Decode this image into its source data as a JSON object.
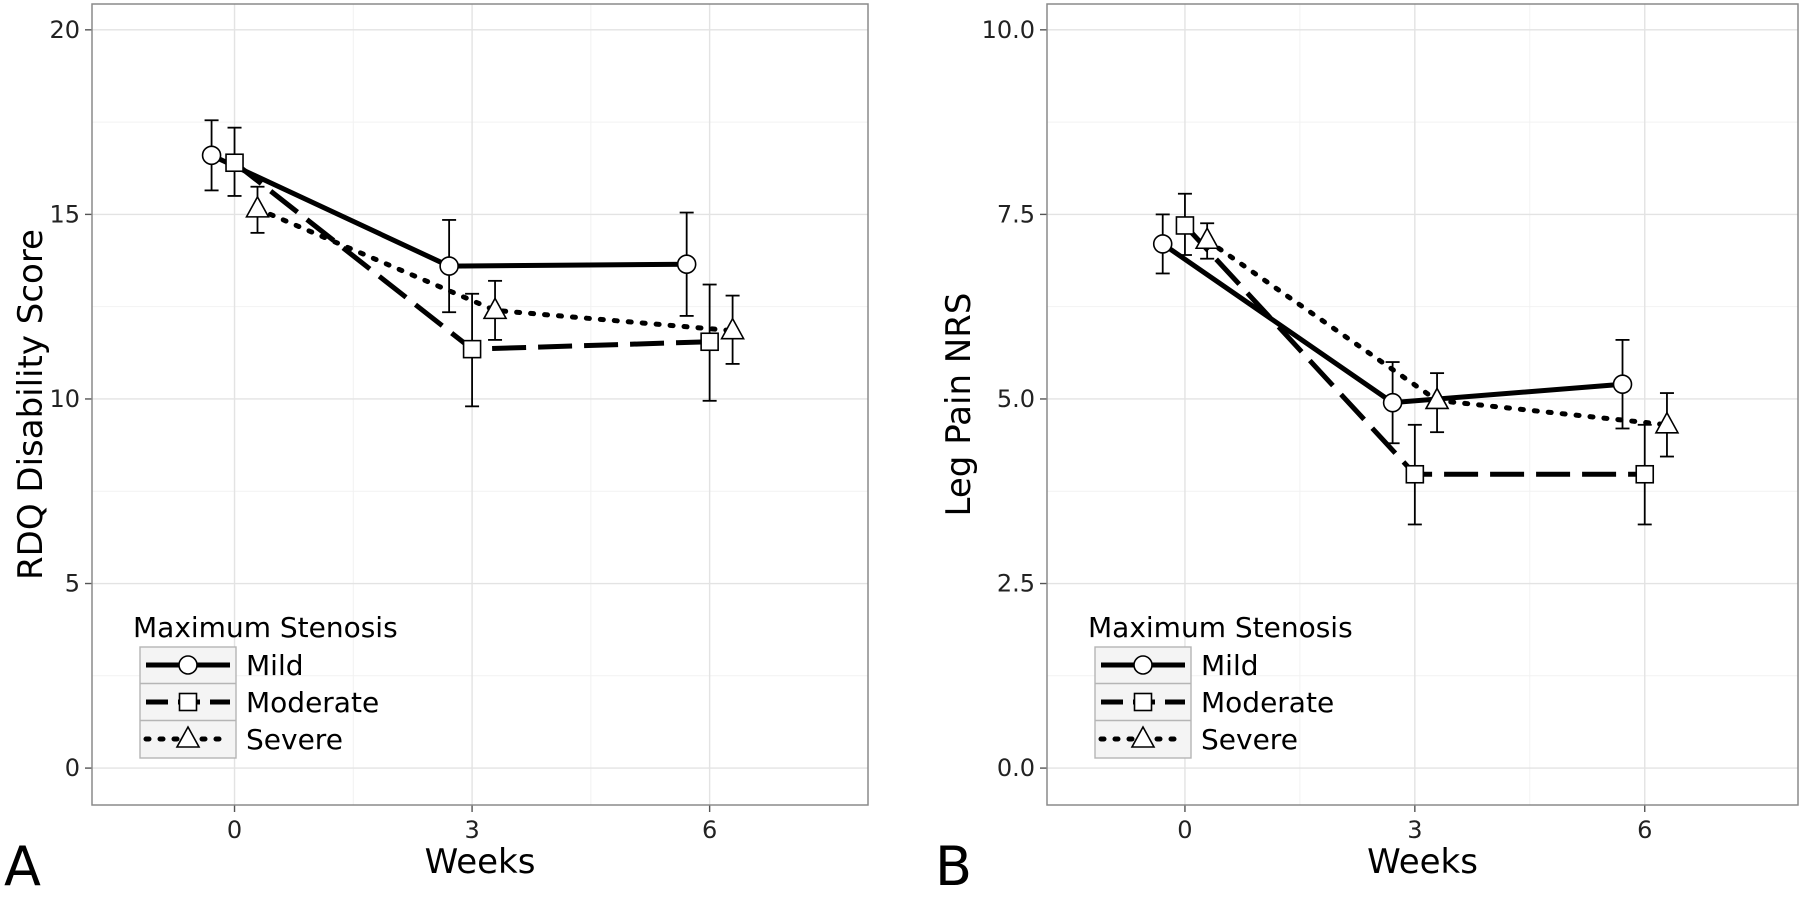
{
  "chart_data": [
    {
      "type": "line",
      "panel_label": "A",
      "xlabel": "Weeks",
      "ylabel": "RDQ Disability Score",
      "x_ticks": [
        "0",
        "3",
        "6"
      ],
      "y_ticks": [
        "0",
        "5",
        "10",
        "15",
        "20"
      ],
      "xlim": [
        -1.8,
        8.0
      ],
      "ylim": [
        -1.0,
        20.7
      ],
      "grid": true,
      "legend": {
        "title": "Maximum Stenosis",
        "position": "bottom-left"
      },
      "series": [
        {
          "name": "Mild",
          "line": "solid",
          "marker": "circle",
          "x": [
            0,
            3,
            6
          ],
          "y": [
            16.6,
            13.6,
            13.65
          ],
          "err_low": [
            15.65,
            12.35,
            12.25
          ],
          "err_high": [
            17.55,
            14.85,
            15.05
          ]
        },
        {
          "name": "Moderate",
          "line": "dashed",
          "marker": "square",
          "x": [
            0,
            3,
            6
          ],
          "y": [
            16.4,
            11.35,
            11.55
          ],
          "err_low": [
            15.5,
            9.8,
            9.95
          ],
          "err_high": [
            17.35,
            12.85,
            13.1
          ]
        },
        {
          "name": "Severe",
          "line": "dotted",
          "marker": "triangle",
          "x": [
            0,
            3,
            6
          ],
          "y": [
            15.15,
            12.4,
            11.85
          ],
          "err_low": [
            14.5,
            11.6,
            10.95
          ],
          "err_high": [
            15.75,
            13.2,
            12.8
          ]
        }
      ]
    },
    {
      "type": "line",
      "panel_label": "B",
      "xlabel": "Weeks",
      "ylabel": "Leg Pain NRS",
      "x_ticks": [
        "0",
        "3",
        "6"
      ],
      "y_ticks": [
        "0.0",
        "2.5",
        "5.0",
        "7.5",
        "10.0"
      ],
      "xlim": [
        -1.8,
        8.0
      ],
      "ylim": [
        -0.5,
        10.35
      ],
      "grid": true,
      "legend": {
        "title": "Maximum Stenosis",
        "position": "bottom-left"
      },
      "series": [
        {
          "name": "Mild",
          "line": "solid",
          "marker": "circle",
          "x": [
            0,
            3,
            6
          ],
          "y": [
            7.1,
            4.95,
            5.2
          ],
          "err_low": [
            6.7,
            4.4,
            4.6
          ],
          "err_high": [
            7.5,
            5.5,
            5.8
          ]
        },
        {
          "name": "Moderate",
          "line": "dashed",
          "marker": "square",
          "x": [
            0,
            3,
            6
          ],
          "y": [
            7.35,
            3.98,
            3.98
          ],
          "err_low": [
            6.95,
            3.3,
            3.3
          ],
          "err_high": [
            7.78,
            4.65,
            4.65
          ]
        },
        {
          "name": "Severe",
          "line": "dotted",
          "marker": "triangle",
          "x": [
            0,
            3,
            6
          ],
          "y": [
            7.15,
            4.98,
            4.65
          ],
          "err_low": [
            6.9,
            4.55,
            4.22
          ],
          "err_high": [
            7.38,
            5.35,
            5.08
          ]
        }
      ]
    }
  ]
}
